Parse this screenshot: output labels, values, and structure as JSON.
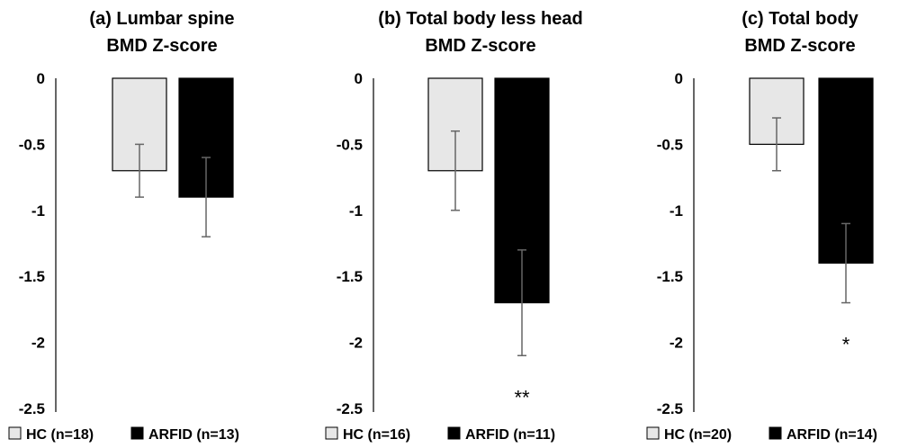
{
  "chart_data": [
    {
      "type": "bar",
      "title": [
        "(a) Lumbar spine",
        "BMD Z-score"
      ],
      "ylim": [
        -2.5,
        0
      ],
      "yticks": [
        "0",
        "-0.5",
        "-1",
        "-1.5",
        "-2",
        "-2.5"
      ],
      "series": [
        {
          "name": "HC (n=18)",
          "value": -0.7,
          "error": 0.2,
          "color": "#e7e7e7"
        },
        {
          "name": "ARFID (n=13)",
          "value": -0.9,
          "error": 0.3,
          "color": "#000000"
        }
      ],
      "annotation": ""
    },
    {
      "type": "bar",
      "title": [
        "(b) Total body less head",
        "BMD Z-score"
      ],
      "ylim": [
        -2.5,
        0
      ],
      "yticks": [
        "0",
        "-0.5",
        "-1",
        "-1.5",
        "-2",
        "-2.5"
      ],
      "series": [
        {
          "name": "HC (n=16)",
          "value": -0.7,
          "error": 0.3,
          "color": "#e7e7e7"
        },
        {
          "name": "ARFID (n=11)",
          "value": -1.7,
          "error": 0.4,
          "color": "#000000"
        }
      ],
      "annotation": "**"
    },
    {
      "type": "bar",
      "title": [
        "(c) Total body",
        "BMD Z-score"
      ],
      "ylim": [
        -2.5,
        0
      ],
      "yticks": [
        "0",
        "-0.5",
        "-1",
        "-1.5",
        "-2",
        "-2.5"
      ],
      "series": [
        {
          "name": "HC (n=20)",
          "value": -0.5,
          "error": 0.2,
          "color": "#e7e7e7"
        },
        {
          "name": "ARFID (n=14)",
          "value": -1.4,
          "error": 0.3,
          "color": "#000000"
        }
      ],
      "annotation": "*"
    }
  ]
}
